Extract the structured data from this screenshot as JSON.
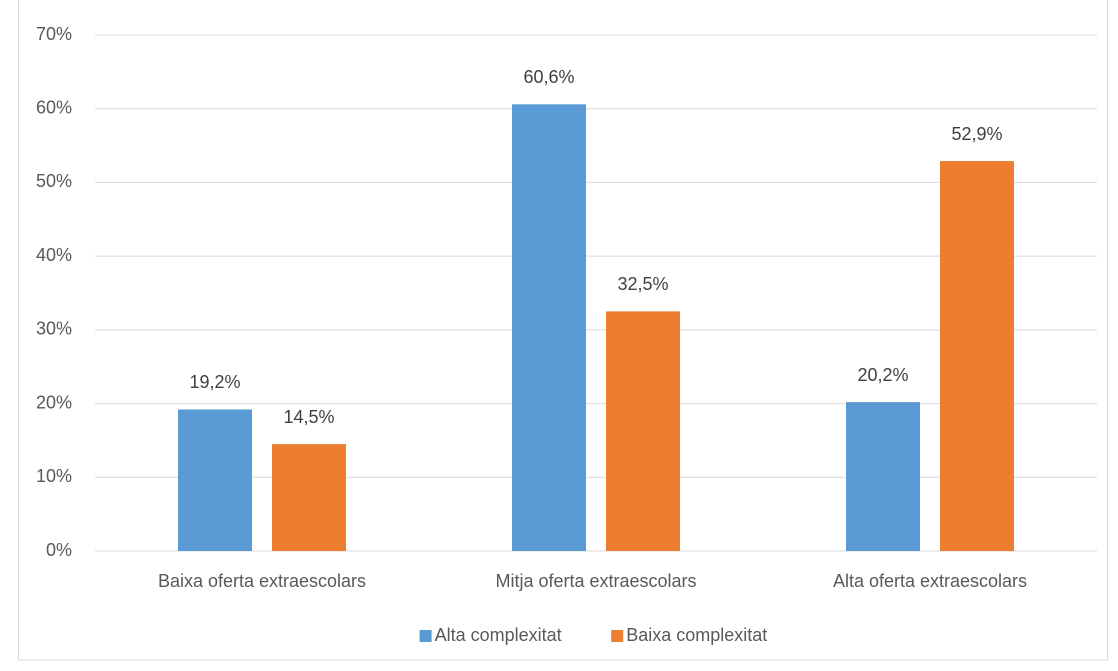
{
  "chart_data": {
    "type": "bar",
    "categories": [
      "Baixa oferta extraescolars",
      "Mitja oferta extraescolars",
      "Alta oferta extraescolars"
    ],
    "series": [
      {
        "name": "Alta complexitat",
        "color": "#5b9bd5",
        "values": [
          19.2,
          60.6,
          20.2
        ],
        "value_labels": [
          "19,2%",
          "60,6%",
          "20,2%"
        ]
      },
      {
        "name": "Baixa complexitat",
        "color": "#ed7d31",
        "values": [
          14.5,
          32.5,
          52.9
        ],
        "value_labels": [
          "14,5%",
          "32,5%",
          "52,9%"
        ]
      }
    ],
    "ylim": [
      0,
      70
    ],
    "yticks": [
      {
        "value": 0,
        "label": "0%"
      },
      {
        "value": 10,
        "label": "10%"
      },
      {
        "value": 20,
        "label": "20%"
      },
      {
        "value": 30,
        "label": "30%"
      },
      {
        "value": 40,
        "label": "40%"
      },
      {
        "value": 50,
        "label": "50%"
      },
      {
        "value": 60,
        "label": "60%"
      },
      {
        "value": 70,
        "label": "70%"
      }
    ],
    "grid": true,
    "legend": "bottom"
  }
}
